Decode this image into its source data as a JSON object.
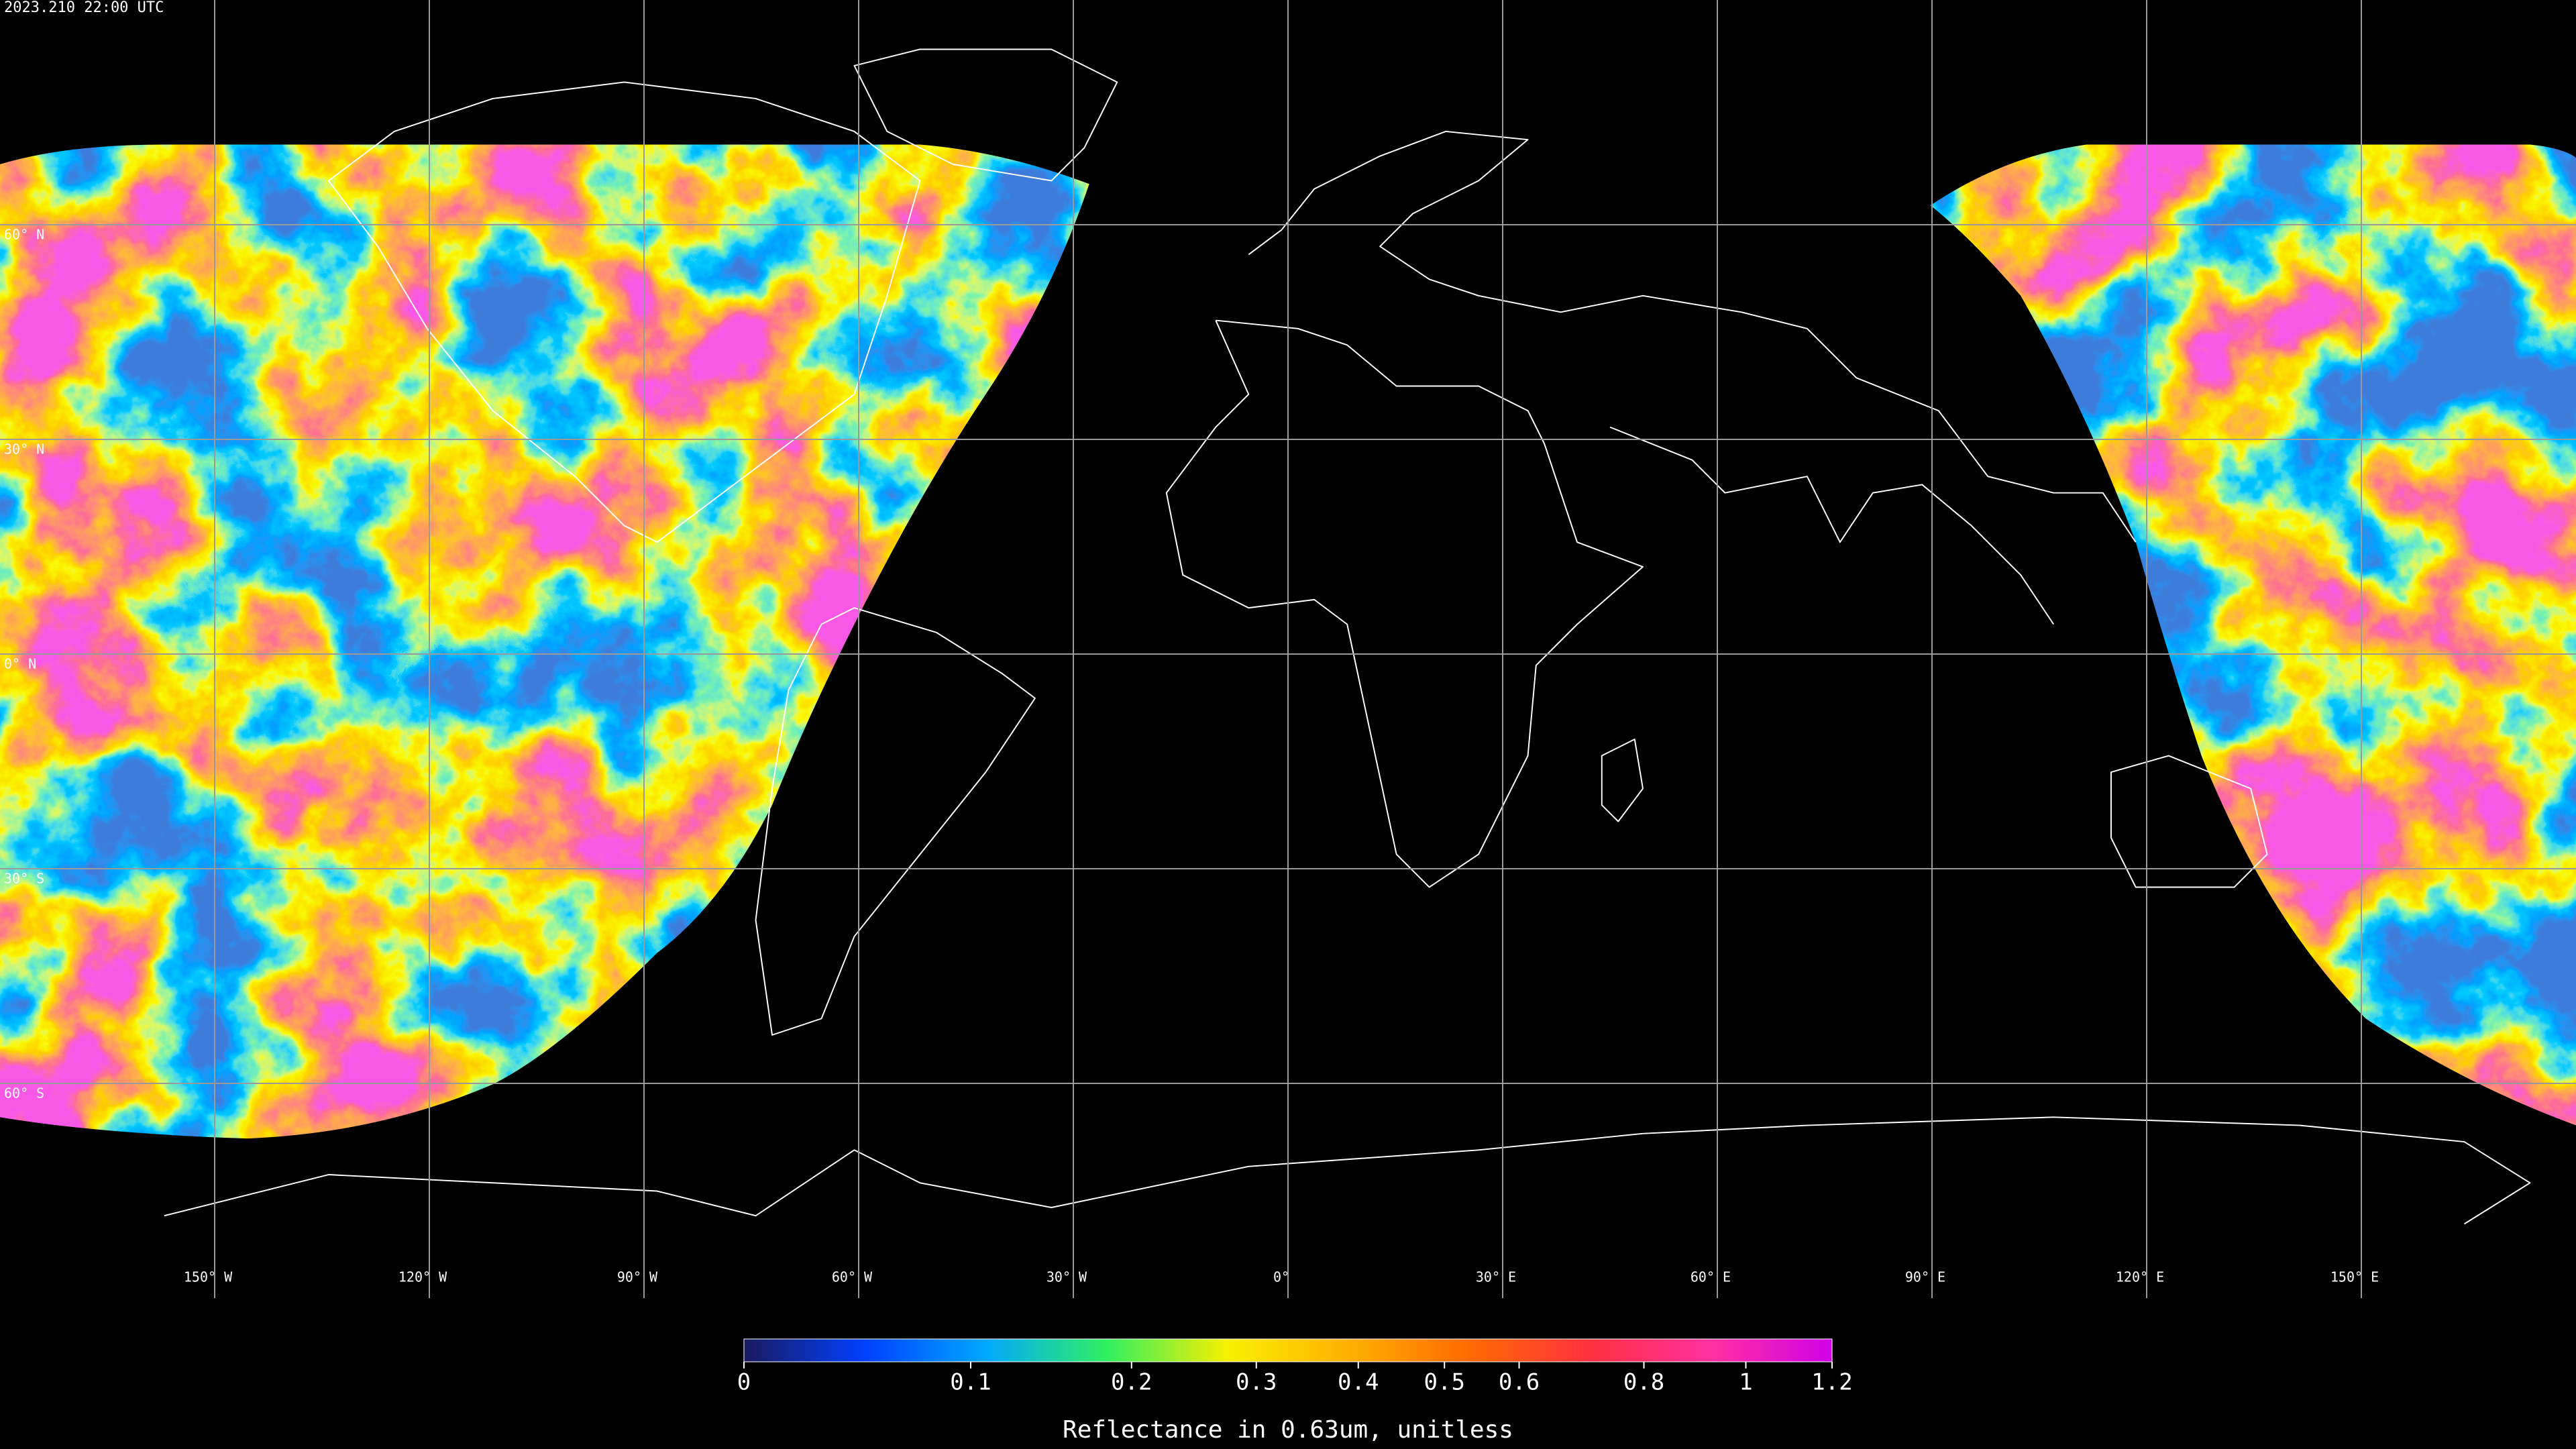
{
  "title": "2023.210 22:00 UTC",
  "latitudes": [
    {
      "value": 60,
      "label": "60° N"
    },
    {
      "value": 30,
      "label": "30° N"
    },
    {
      "value": 0,
      "label": "0° N"
    },
    {
      "value": -30,
      "label": "30° S"
    },
    {
      "value": -60,
      "label": "60° S"
    }
  ],
  "longitudes": [
    {
      "value": -150,
      "label": "150° W"
    },
    {
      "value": -120,
      "label": "120° W"
    },
    {
      "value": -90,
      "label": "90° W"
    },
    {
      "value": -60,
      "label": "60° W"
    },
    {
      "value": -30,
      "label": "30° W"
    },
    {
      "value": 0,
      "label": "0°"
    },
    {
      "value": 30,
      "label": "30° E"
    },
    {
      "value": 60,
      "label": "60° E"
    },
    {
      "value": 90,
      "label": "90° E"
    },
    {
      "value": 120,
      "label": "120° E"
    },
    {
      "value": 150,
      "label": "150° E"
    }
  ],
  "colorbar": {
    "label": "Reflectance in 0.63um, unitless",
    "lim": [
      0,
      1.2
    ],
    "ticks": [
      0,
      0.1,
      0.2,
      0.3,
      0.4,
      0.5,
      0.6,
      0.8,
      1,
      1.2
    ],
    "colors": [
      "#1a1a5e",
      "#0040ff",
      "#00a8ff",
      "#30f060",
      "#f8f000",
      "#ffb000",
      "#ff6a00",
      "#ff3040",
      "#ff30a0",
      "#d000e8"
    ]
  }
}
